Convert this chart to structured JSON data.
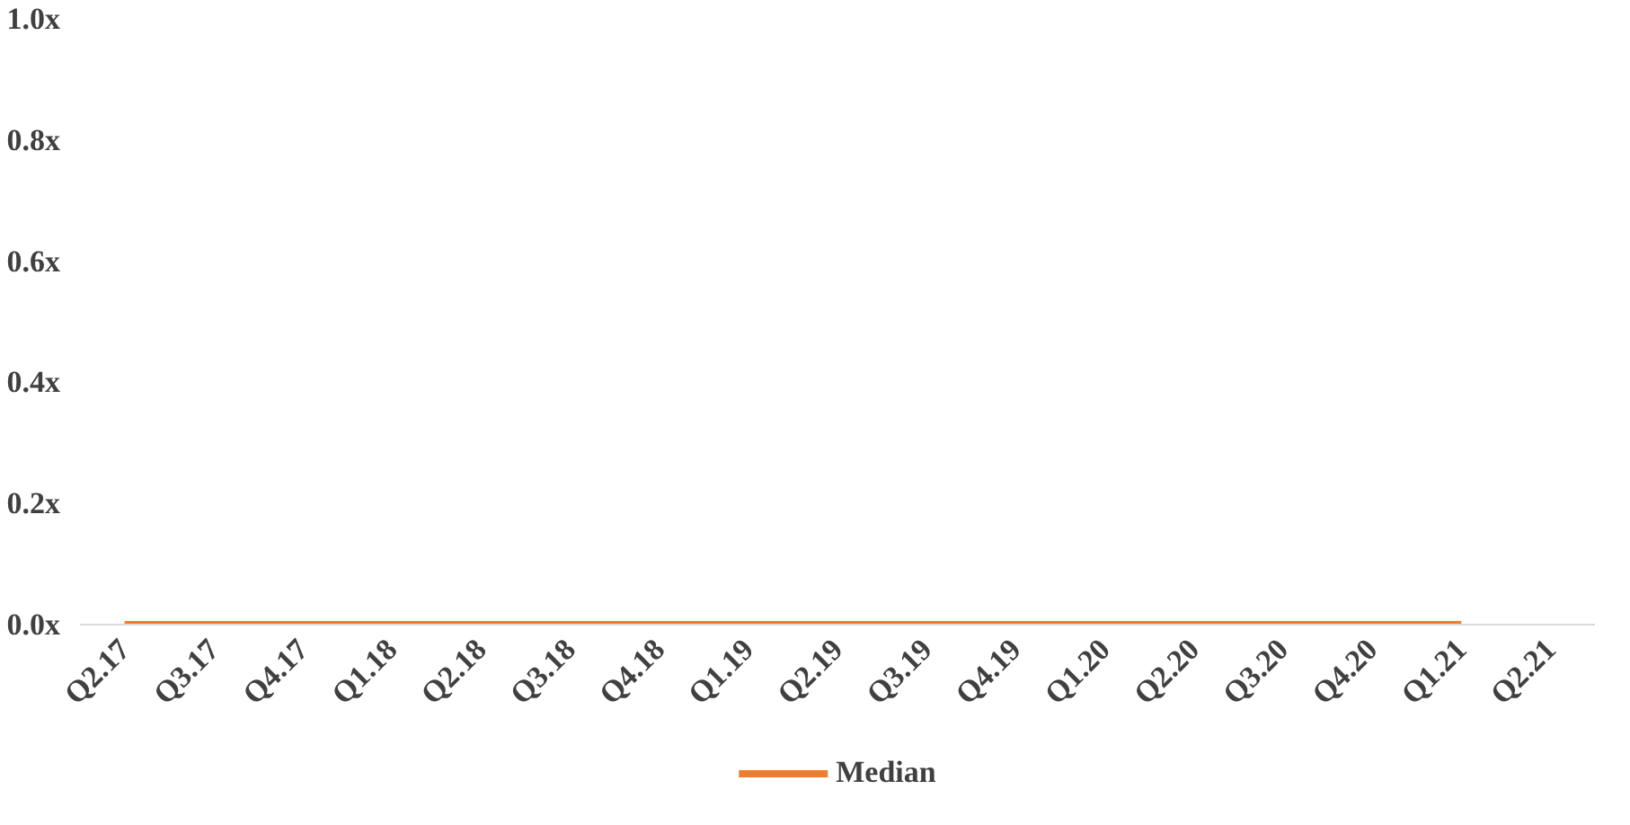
{
  "chart_data": {
    "type": "line",
    "categories": [
      "Q2.17",
      "Q3.17",
      "Q4.17",
      "Q1.18",
      "Q2.18",
      "Q3.18",
      "Q4.18",
      "Q1.19",
      "Q2.19",
      "Q3.19",
      "Q4.19",
      "Q1.20",
      "Q2.20",
      "Q3.20",
      "Q4.20",
      "Q1.21",
      "Q2.21"
    ],
    "series": [
      {
        "name": "Median",
        "color": "#ed7d31",
        "values": [
          0,
          0,
          0,
          0,
          0,
          0,
          0,
          0,
          0,
          0,
          0,
          0,
          0,
          0,
          0,
          0,
          null
        ]
      }
    ],
    "ylim": [
      0,
      1.0
    ],
    "yticks": [
      {
        "value": 0,
        "label": "0.0x"
      },
      {
        "value": 0.2,
        "label": "0.2x"
      },
      {
        "value": 0.4,
        "label": "0.4x"
      },
      {
        "value": 0.6,
        "label": "0.6x"
      },
      {
        "value": 0.8,
        "label": "0.8x"
      },
      {
        "value": 1.0,
        "label": "1.0x"
      }
    ],
    "grid": false,
    "legend": "bottom",
    "marker": "none",
    "line_style": "solid"
  }
}
